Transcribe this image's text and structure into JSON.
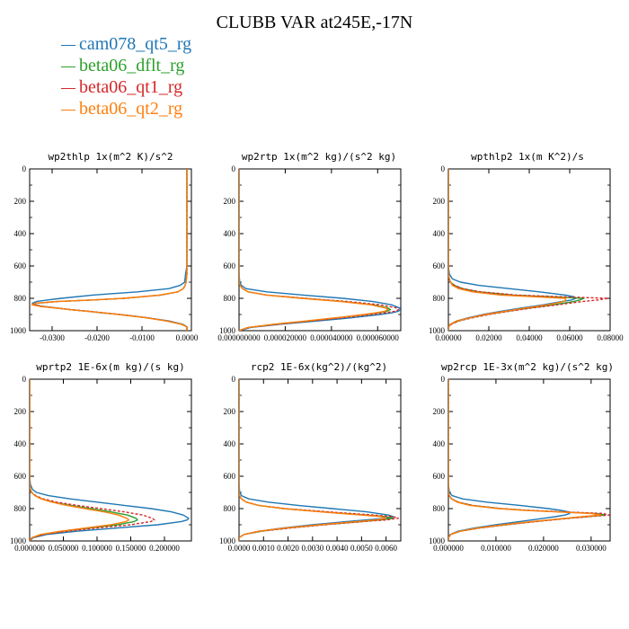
{
  "figure": {
    "title": "CLUBB VAR at245E,-17N"
  },
  "legend": [
    {
      "name": "cam078_qt5_rg",
      "color": "#1f77b4",
      "dash": "solid"
    },
    {
      "name": "beta06_dflt_rg",
      "color": "#2ca02c",
      "dash": "solid"
    },
    {
      "name": "beta06_qt1_rg",
      "color": "#d62728",
      "dash": "dashed"
    },
    {
      "name": "beta06_qt2_rg",
      "color": "#ff7f0e",
      "dash": "solid"
    }
  ],
  "chart_data": [
    {
      "type": "line",
      "title": "wp2thlp  1x(m^2 K)/s^2",
      "xlim": [
        -0.035,
        0.001
      ],
      "ylim": [
        1000,
        0
      ],
      "xticks": [
        "-0.0300",
        "-0.0200",
        "-0.0100",
        "0.0000"
      ],
      "xtick_values": [
        -0.03,
        -0.02,
        -0.01,
        0.0
      ],
      "yticks": [
        "0",
        "200",
        "400",
        "600",
        "800",
        "1000"
      ],
      "ytick_values": [
        0,
        200,
        400,
        600,
        800,
        1000
      ],
      "y": [
        0,
        100,
        200,
        300,
        400,
        500,
        600,
        650,
        700,
        720,
        740,
        760,
        780,
        800,
        810,
        820,
        830,
        840,
        850,
        860,
        870,
        880,
        890,
        900,
        920,
        940,
        960,
        970,
        980,
        1000
      ],
      "series": [
        {
          "values": [
            0,
            0,
            0,
            0,
            0,
            0,
            0,
            -0.0003,
            -0.0005,
            -0.0015,
            -0.004,
            -0.011,
            -0.021,
            -0.028,
            -0.031,
            -0.0335,
            -0.0344,
            -0.0338,
            -0.032,
            -0.029,
            -0.026,
            -0.022,
            -0.019,
            -0.015,
            -0.009,
            -0.004,
            -0.001,
            -0.0003,
            0,
            0
          ]
        },
        {
          "values": [
            0,
            0,
            0,
            0,
            0,
            0,
            0,
            0,
            -0.0002,
            -0.0004,
            -0.0008,
            -0.002,
            -0.006,
            -0.014,
            -0.021,
            -0.029,
            -0.0335,
            -0.0342,
            -0.0325,
            -0.029,
            -0.026,
            -0.022,
            -0.0185,
            -0.015,
            -0.009,
            -0.0045,
            -0.0012,
            -0.0004,
            0,
            0
          ]
        },
        {
          "values": [
            0,
            0,
            0,
            0,
            0,
            0,
            0,
            0,
            -0.0002,
            -0.0004,
            -0.0008,
            -0.002,
            -0.0058,
            -0.0138,
            -0.0208,
            -0.0288,
            -0.0332,
            -0.034,
            -0.0322,
            -0.0288,
            -0.0258,
            -0.0218,
            -0.0183,
            -0.0148,
            -0.0088,
            -0.0044,
            -0.0012,
            -0.0004,
            0,
            0
          ]
        },
        {
          "values": [
            0,
            0,
            0,
            0,
            0,
            0,
            0,
            0,
            -0.0002,
            -0.0004,
            -0.0008,
            -0.002,
            -0.0062,
            -0.0142,
            -0.0212,
            -0.0292,
            -0.0337,
            -0.0345,
            -0.0327,
            -0.0292,
            -0.0262,
            -0.0222,
            -0.0187,
            -0.0152,
            -0.0092,
            -0.0046,
            -0.0013,
            -0.0004,
            0,
            0
          ]
        }
      ]
    },
    {
      "type": "line",
      "title": "wp2rtp  1x(m^2 kg)/(s^2 kg)",
      "xlim": [
        0,
        7e-05
      ],
      "ylim": [
        1000,
        0
      ],
      "xticks": [
        "0.000000000",
        "0.000020000",
        "0.000040000",
        "0.000060000"
      ],
      "xtick_values": [
        0,
        2e-05,
        4e-05,
        6e-05
      ],
      "yticks": [
        "0",
        "200",
        "400",
        "600",
        "800",
        "1000"
      ],
      "ytick_values": [
        0,
        200,
        400,
        600,
        800,
        1000
      ],
      "y": [
        0,
        200,
        400,
        600,
        650,
        700,
        720,
        740,
        760,
        780,
        800,
        820,
        840,
        860,
        870,
        880,
        890,
        900,
        920,
        940,
        960,
        980,
        1000
      ],
      "series": [
        {
          "values": [
            0,
            0,
            0,
            0,
            0,
            3e-07,
            1e-06,
            3e-06,
            1.2e-05,
            2.8e-05,
            4.5e-05,
            5.8e-05,
            6.6e-05,
            6.95e-05,
            6.98e-05,
            6.9e-05,
            6.6e-05,
            6.1e-05,
            4.9e-05,
            3.4e-05,
            1.8e-05,
            5e-06,
            0
          ]
        },
        {
          "values": [
            0,
            0,
            0,
            0,
            0,
            0,
            5e-07,
            1.5e-06,
            4e-06,
            1.2e-05,
            2.8e-05,
            4.5e-05,
            5.8e-05,
            6.45e-05,
            6.55e-05,
            6.4e-05,
            6e-05,
            5.5e-05,
            4.3e-05,
            3e-05,
            1.6e-05,
            4e-06,
            0
          ]
        },
        {
          "values": [
            0,
            0,
            0,
            0,
            0,
            0,
            5e-07,
            1.5e-06,
            4e-06,
            1.2e-05,
            2.9e-05,
            4.7e-05,
            6.1e-05,
            6.85e-05,
            6.9e-05,
            6.75e-05,
            6.3e-05,
            5.7e-05,
            4.5e-05,
            3.1e-05,
            1.7e-05,
            4e-06,
            0
          ]
        },
        {
          "values": [
            0,
            0,
            0,
            0,
            0,
            0,
            5e-07,
            1.5e-06,
            4e-06,
            1.2e-05,
            2.7e-05,
            4.4e-05,
            5.7e-05,
            6.35e-05,
            6.45e-05,
            6.3e-05,
            5.9e-05,
            5.4e-05,
            4.2e-05,
            2.9e-05,
            1.5e-05,
            4e-06,
            0
          ]
        }
      ]
    },
    {
      "type": "line",
      "title": "wpthlp2  1x(m K^2)/s",
      "xlim": [
        0,
        0.08
      ],
      "ylim": [
        1000,
        0
      ],
      "xticks": [
        "0.00000",
        "0.02000",
        "0.04000",
        "0.06000",
        "0.08000"
      ],
      "xtick_values": [
        0,
        0.02,
        0.04,
        0.06,
        0.08
      ],
      "yticks": [
        "0",
        "200",
        "400",
        "600",
        "800",
        "1000"
      ],
      "ytick_values": [
        0,
        200,
        400,
        600,
        800,
        1000
      ],
      "y": [
        0,
        200,
        400,
        600,
        650,
        680,
        700,
        720,
        740,
        760,
        780,
        790,
        800,
        810,
        820,
        840,
        860,
        880,
        900,
        920,
        940,
        960,
        980,
        1000
      ],
      "series": [
        {
          "values": [
            0,
            0,
            0,
            0,
            0.0005,
            0.002,
            0.006,
            0.015,
            0.03,
            0.045,
            0.058,
            0.062,
            0.063,
            0.061,
            0.056,
            0.047,
            0.036,
            0.026,
            0.017,
            0.01,
            0.004,
            0.001,
            0,
            0
          ]
        },
        {
          "values": [
            0,
            0,
            0,
            0,
            0,
            0.0005,
            0.001,
            0.003,
            0.007,
            0.015,
            0.032,
            0.05,
            0.067,
            0.065,
            0.062,
            0.052,
            0.04,
            0.029,
            0.019,
            0.011,
            0.005,
            0.001,
            0,
            0
          ]
        },
        {
          "values": [
            0,
            0,
            0,
            0,
            0,
            0.0005,
            0.001,
            0.003,
            0.007,
            0.016,
            0.034,
            0.055,
            0.079,
            0.074,
            0.066,
            0.054,
            0.041,
            0.03,
            0.02,
            0.012,
            0.005,
            0.0015,
            0,
            0
          ]
        },
        {
          "values": [
            0,
            0,
            0,
            0,
            0,
            0.0005,
            0.001,
            0.002,
            0.005,
            0.012,
            0.026,
            0.042,
            0.058,
            0.058,
            0.057,
            0.049,
            0.038,
            0.028,
            0.018,
            0.011,
            0.004,
            0.001,
            0,
            0
          ]
        }
      ]
    },
    {
      "type": "line",
      "title": "wprtp2  1E-6x(m kg)/(s kg)",
      "xlim": [
        0,
        0.24
      ],
      "ylim": [
        1000,
        0
      ],
      "xticks": [
        "0.000000",
        "0.050000",
        "0.100000",
        "0.150000",
        "0.200000"
      ],
      "xtick_values": [
        0,
        0.05,
        0.1,
        0.15,
        0.2
      ],
      "yticks": [
        "0",
        "200",
        "400",
        "600",
        "800",
        "1000"
      ],
      "ytick_values": [
        0,
        200,
        400,
        600,
        800,
        1000
      ],
      "y": [
        0,
        200,
        400,
        600,
        650,
        680,
        700,
        720,
        740,
        760,
        780,
        800,
        820,
        840,
        860,
        870,
        880,
        900,
        920,
        940,
        960,
        980,
        1000
      ],
      "series": [
        {
          "values": [
            0,
            0,
            0,
            0,
            0.001,
            0.004,
            0.01,
            0.028,
            0.06,
            0.1,
            0.14,
            0.18,
            0.21,
            0.228,
            0.236,
            0.234,
            0.225,
            0.19,
            0.13,
            0.07,
            0.025,
            0.005,
            0
          ]
        },
        {
          "values": [
            0,
            0,
            0,
            0,
            0,
            0.001,
            0.003,
            0.008,
            0.018,
            0.035,
            0.06,
            0.09,
            0.12,
            0.145,
            0.158,
            0.16,
            0.155,
            0.13,
            0.09,
            0.05,
            0.018,
            0.004,
            0
          ]
        },
        {
          "values": [
            0,
            0,
            0,
            0,
            0,
            0.001,
            0.003,
            0.009,
            0.02,
            0.04,
            0.07,
            0.105,
            0.14,
            0.168,
            0.182,
            0.185,
            0.18,
            0.15,
            0.1,
            0.055,
            0.02,
            0.004,
            0
          ]
        },
        {
          "values": [
            0,
            0,
            0,
            0,
            0,
            0.001,
            0.003,
            0.008,
            0.017,
            0.033,
            0.055,
            0.082,
            0.11,
            0.132,
            0.144,
            0.147,
            0.143,
            0.12,
            0.083,
            0.046,
            0.016,
            0.003,
            0
          ]
        }
      ]
    },
    {
      "type": "line",
      "title": "rcp2  1E-6x(kg^2)/(kg^2)",
      "xlim": [
        0,
        0.0066
      ],
      "ylim": [
        1000,
        0
      ],
      "xticks": [
        "0.0000",
        "0.0010",
        "0.0020",
        "0.0030",
        "0.0040",
        "0.0050",
        "0.0060"
      ],
      "xtick_values": [
        0,
        0.001,
        0.002,
        0.003,
        0.004,
        0.005,
        0.006
      ],
      "yticks": [
        "0",
        "200",
        "400",
        "600",
        "800",
        "1000"
      ],
      "ytick_values": [
        0,
        200,
        400,
        600,
        800,
        1000
      ],
      "y": [
        0,
        200,
        400,
        600,
        650,
        700,
        720,
        740,
        760,
        780,
        800,
        820,
        840,
        850,
        860,
        870,
        880,
        900,
        920,
        940,
        960,
        980,
        1000
      ],
      "series": [
        {
          "values": [
            0,
            0,
            0,
            0,
            0,
            3e-05,
            0.0001,
            0.0004,
            0.0012,
            0.0024,
            0.0038,
            0.0052,
            0.0061,
            0.0063,
            0.006,
            0.0052,
            0.0044,
            0.003,
            0.0018,
            0.0008,
            0.0002,
            0,
            0
          ]
        },
        {
          "values": [
            0,
            0,
            0,
            0,
            0,
            0,
            2e-05,
            0.0001,
            0.0003,
            0.0008,
            0.0018,
            0.0034,
            0.0052,
            0.006,
            0.0063,
            0.0058,
            0.005,
            0.0034,
            0.002,
            0.0009,
            0.0002,
            0,
            0
          ]
        },
        {
          "values": [
            0,
            0,
            0,
            0,
            0,
            0,
            2e-05,
            0.0001,
            0.0003,
            0.0008,
            0.0019,
            0.0036,
            0.0055,
            0.0063,
            0.0065,
            0.006,
            0.0051,
            0.0035,
            0.0021,
            0.0009,
            0.0002,
            0,
            0
          ]
        },
        {
          "values": [
            0,
            0,
            0,
            0,
            0,
            0,
            2e-05,
            0.0001,
            0.0003,
            0.0008,
            0.0018,
            0.0033,
            0.005,
            0.0058,
            0.006,
            0.0056,
            0.0048,
            0.0033,
            0.0019,
            0.0008,
            0.0002,
            0,
            0
          ]
        }
      ]
    },
    {
      "type": "line",
      "title": "wp2rcp  1E-3x(m^2 kg)/(s^2 kg)",
      "xlim": [
        0,
        0.034
      ],
      "ylim": [
        1000,
        0
      ],
      "xticks": [
        "0.000000",
        "0.010000",
        "0.020000",
        "0.030000"
      ],
      "xtick_values": [
        0,
        0.01,
        0.02,
        0.03
      ],
      "yticks": [
        "0",
        "200",
        "400",
        "600",
        "800",
        "1000"
      ],
      "ytick_values": [
        0,
        200,
        400,
        600,
        800,
        1000
      ],
      "y": [
        0,
        200,
        400,
        600,
        650,
        700,
        720,
        740,
        760,
        780,
        800,
        810,
        820,
        830,
        840,
        850,
        860,
        880,
        900,
        920,
        940,
        960,
        980,
        1000
      ],
      "series": [
        {
          "values": [
            0,
            0,
            0,
            0,
            0,
            0.0002,
            0.0008,
            0.003,
            0.008,
            0.015,
            0.021,
            0.0235,
            0.0252,
            0.0255,
            0.0245,
            0.0225,
            0.02,
            0.015,
            0.01,
            0.0055,
            0.002,
            0.0004,
            0,
            0
          ]
        },
        {
          "values": [
            0,
            0,
            0,
            0,
            0,
            0,
            0.0002,
            0.0007,
            0.002,
            0.005,
            0.011,
            0.016,
            0.023,
            0.031,
            0.033,
            0.029,
            0.025,
            0.018,
            0.012,
            0.0065,
            0.0025,
            0.0005,
            0,
            0
          ]
        },
        {
          "values": [
            0,
            0,
            0,
            0,
            0,
            0,
            0.0002,
            0.0007,
            0.002,
            0.005,
            0.011,
            0.0165,
            0.024,
            0.0325,
            0.0338,
            0.0295,
            0.0255,
            0.0185,
            0.0122,
            0.0066,
            0.0025,
            0.0005,
            0,
            0
          ]
        },
        {
          "values": [
            0,
            0,
            0,
            0,
            0,
            0,
            0.0002,
            0.0006,
            0.0018,
            0.0045,
            0.0105,
            0.0155,
            0.0225,
            0.03,
            0.032,
            0.028,
            0.0245,
            0.0175,
            0.0115,
            0.0062,
            0.0024,
            0.0005,
            0,
            0
          ]
        }
      ]
    }
  ]
}
